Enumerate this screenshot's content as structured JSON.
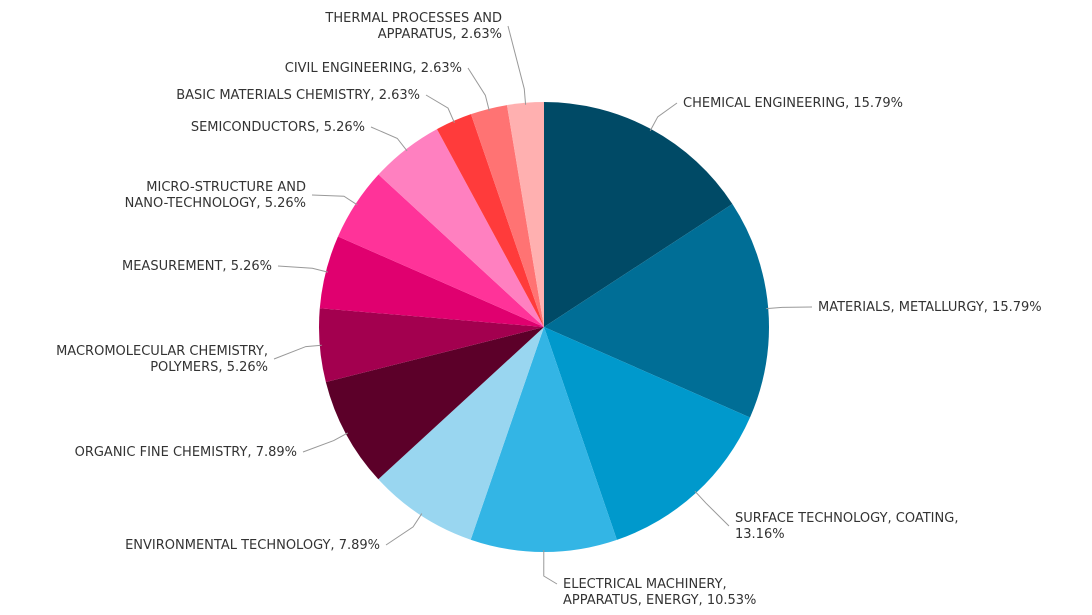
{
  "chart_data": {
    "type": "pie",
    "values": [
      15.79,
      15.79,
      13.16,
      10.53,
      7.89,
      7.89,
      5.26,
      5.26,
      5.26,
      5.26,
      2.63,
      2.63,
      2.63
    ],
    "value_labels": [
      [
        "CHEMICAL ENGINEERING, 15.79%"
      ],
      [
        "MATERIALS, METALLURGY, 15.79%"
      ],
      [
        "SURFACE TECHNOLOGY, COATING,",
        "13.16%"
      ],
      [
        "ELECTRICAL MACHINERY,",
        "APPARATUS, ENERGY, 10.53%"
      ],
      [
        "ENVIRONMENTAL TECHNOLOGY, 7.89%"
      ],
      [
        "ORGANIC FINE CHEMISTRY, 7.89%"
      ],
      [
        "MACROMOLECULAR CHEMISTRY,",
        "POLYMERS, 5.26%"
      ],
      [
        "MEASUREMENT, 5.26%"
      ],
      [
        "MICRO-STRUCTURE AND",
        "NANO-TECHNOLOGY, 5.26%"
      ],
      [
        "SEMICONDUCTORS, 5.26%"
      ],
      [
        "BASIC MATERIALS CHEMISTRY, 2.63%"
      ],
      [
        "CIVIL ENGINEERING, 2.63%"
      ],
      [
        "THERMAL PROCESSES AND",
        "APPARATUS, 2.63%"
      ]
    ],
    "colors": [
      "#004a66",
      "#006e96",
      "#0099cc",
      "#33b5e5",
      "#99d6f0",
      "#5c0029",
      "#a3004f",
      "#e0006f",
      "#ff3399",
      "#ff80c0",
      "#ff3b3b",
      "#ff7373",
      "#ffb0b0"
    ]
  }
}
